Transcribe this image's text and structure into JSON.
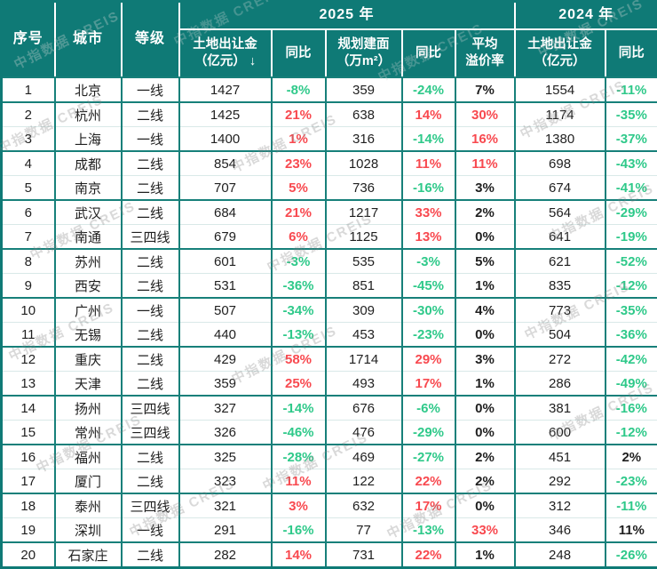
{
  "watermark": {
    "text": "中指数据 CREIS"
  },
  "colors": {
    "header_bg": "#0f7a76",
    "grid_teal": "#17807a",
    "grid_light": "#d9e9e8",
    "positive_red": "#f8494f",
    "negative_green": "#2fc98a",
    "neutral_dark": "#1f1f1f"
  },
  "chart_data": {
    "type": "table",
    "column_groups": [
      {
        "label": "2025 年",
        "span": 5
      },
      {
        "label": "2024 年",
        "span": 2
      }
    ],
    "columns": {
      "no": "序号",
      "city": "城市",
      "tier": "等级",
      "land_2025": "土地出让金\n（亿元） ↓",
      "yoy_land_2025": "同比",
      "area_2025": "规划建面\n（万m²）",
      "yoy_area_2025": "同比",
      "avg_premium": "平均\n溢价率",
      "land_2024": "土地出让金\n（亿元）",
      "yoy_land_2024": "同比"
    },
    "row_fields": [
      "no",
      "city",
      "tier",
      "land_2025",
      "yoy_land_2025",
      "area_2025",
      "yoy_area_2025",
      "avg_premium",
      "land_2024",
      "yoy_land_2024"
    ],
    "rows": [
      {
        "no": "1",
        "city": "北京",
        "tier": "一线",
        "land_2025": "1427",
        "yoy_land_2025": {
          "t": "-8%",
          "c": "green"
        },
        "area_2025": "359",
        "yoy_area_2025": {
          "t": "-24%",
          "c": "green"
        },
        "avg_premium": {
          "t": "7%",
          "c": "dark"
        },
        "land_2024": "1554",
        "yoy_land_2024": {
          "t": "-11%",
          "c": "green"
        }
      },
      {
        "no": "2",
        "city": "杭州",
        "tier": "二线",
        "land_2025": "1425",
        "yoy_land_2025": {
          "t": "21%",
          "c": "red"
        },
        "area_2025": "638",
        "yoy_area_2025": {
          "t": "14%",
          "c": "red"
        },
        "avg_premium": {
          "t": "30%",
          "c": "red"
        },
        "land_2024": "1174",
        "yoy_land_2024": {
          "t": "-35%",
          "c": "green"
        }
      },
      {
        "no": "3",
        "city": "上海",
        "tier": "一线",
        "land_2025": "1400",
        "yoy_land_2025": {
          "t": "1%",
          "c": "red"
        },
        "area_2025": "316",
        "yoy_area_2025": {
          "t": "-14%",
          "c": "green"
        },
        "avg_premium": {
          "t": "16%",
          "c": "red"
        },
        "land_2024": "1380",
        "yoy_land_2024": {
          "t": "-37%",
          "c": "green"
        }
      },
      {
        "no": "4",
        "city": "成都",
        "tier": "二线",
        "land_2025": "854",
        "yoy_land_2025": {
          "t": "23%",
          "c": "red"
        },
        "area_2025": "1028",
        "yoy_area_2025": {
          "t": "11%",
          "c": "red"
        },
        "avg_premium": {
          "t": "11%",
          "c": "red"
        },
        "land_2024": "698",
        "yoy_land_2024": {
          "t": "-43%",
          "c": "green"
        }
      },
      {
        "no": "5",
        "city": "南京",
        "tier": "二线",
        "land_2025": "707",
        "yoy_land_2025": {
          "t": "5%",
          "c": "red"
        },
        "area_2025": "736",
        "yoy_area_2025": {
          "t": "-16%",
          "c": "green"
        },
        "avg_premium": {
          "t": "3%",
          "c": "dark"
        },
        "land_2024": "674",
        "yoy_land_2024": {
          "t": "-41%",
          "c": "green"
        }
      },
      {
        "no": "6",
        "city": "武汉",
        "tier": "二线",
        "land_2025": "684",
        "yoy_land_2025": {
          "t": "21%",
          "c": "red"
        },
        "area_2025": "1217",
        "yoy_area_2025": {
          "t": "33%",
          "c": "red"
        },
        "avg_premium": {
          "t": "2%",
          "c": "dark"
        },
        "land_2024": "564",
        "yoy_land_2024": {
          "t": "-29%",
          "c": "green"
        }
      },
      {
        "no": "7",
        "city": "南通",
        "tier": "三四线",
        "land_2025": "679",
        "yoy_land_2025": {
          "t": "6%",
          "c": "red"
        },
        "area_2025": "1125",
        "yoy_area_2025": {
          "t": "13%",
          "c": "red"
        },
        "avg_premium": {
          "t": "0%",
          "c": "dark"
        },
        "land_2024": "641",
        "yoy_land_2024": {
          "t": "-19%",
          "c": "green"
        }
      },
      {
        "no": "8",
        "city": "苏州",
        "tier": "二线",
        "land_2025": "601",
        "yoy_land_2025": {
          "t": "-3%",
          "c": "green"
        },
        "area_2025": "535",
        "yoy_area_2025": {
          "t": "-3%",
          "c": "green"
        },
        "avg_premium": {
          "t": "5%",
          "c": "dark"
        },
        "land_2024": "621",
        "yoy_land_2024": {
          "t": "-52%",
          "c": "green"
        }
      },
      {
        "no": "9",
        "city": "西安",
        "tier": "二线",
        "land_2025": "531",
        "yoy_land_2025": {
          "t": "-36%",
          "c": "green"
        },
        "area_2025": "851",
        "yoy_area_2025": {
          "t": "-45%",
          "c": "green"
        },
        "avg_premium": {
          "t": "1%",
          "c": "dark"
        },
        "land_2024": "835",
        "yoy_land_2024": {
          "t": "-12%",
          "c": "green"
        }
      },
      {
        "no": "10",
        "city": "广州",
        "tier": "一线",
        "land_2025": "507",
        "yoy_land_2025": {
          "t": "-34%",
          "c": "green"
        },
        "area_2025": "309",
        "yoy_area_2025": {
          "t": "-30%",
          "c": "green"
        },
        "avg_premium": {
          "t": "4%",
          "c": "dark"
        },
        "land_2024": "773",
        "yoy_land_2024": {
          "t": "-35%",
          "c": "green"
        }
      },
      {
        "no": "11",
        "city": "无锡",
        "tier": "二线",
        "land_2025": "440",
        "yoy_land_2025": {
          "t": "-13%",
          "c": "green"
        },
        "area_2025": "453",
        "yoy_area_2025": {
          "t": "-23%",
          "c": "green"
        },
        "avg_premium": {
          "t": "0%",
          "c": "dark"
        },
        "land_2024": "504",
        "yoy_land_2024": {
          "t": "-36%",
          "c": "green"
        }
      },
      {
        "no": "12",
        "city": "重庆",
        "tier": "二线",
        "land_2025": "429",
        "yoy_land_2025": {
          "t": "58%",
          "c": "red"
        },
        "area_2025": "1714",
        "yoy_area_2025": {
          "t": "29%",
          "c": "red"
        },
        "avg_premium": {
          "t": "3%",
          "c": "dark"
        },
        "land_2024": "272",
        "yoy_land_2024": {
          "t": "-42%",
          "c": "green"
        }
      },
      {
        "no": "13",
        "city": "天津",
        "tier": "二线",
        "land_2025": "359",
        "yoy_land_2025": {
          "t": "25%",
          "c": "red"
        },
        "area_2025": "493",
        "yoy_area_2025": {
          "t": "17%",
          "c": "red"
        },
        "avg_premium": {
          "t": "1%",
          "c": "dark"
        },
        "land_2024": "286",
        "yoy_land_2024": {
          "t": "-49%",
          "c": "green"
        }
      },
      {
        "no": "14",
        "city": "扬州",
        "tier": "三四线",
        "land_2025": "327",
        "yoy_land_2025": {
          "t": "-14%",
          "c": "green"
        },
        "area_2025": "676",
        "yoy_area_2025": {
          "t": "-6%",
          "c": "green"
        },
        "avg_premium": {
          "t": "0%",
          "c": "dark"
        },
        "land_2024": "381",
        "yoy_land_2024": {
          "t": "-16%",
          "c": "green"
        }
      },
      {
        "no": "15",
        "city": "常州",
        "tier": "三四线",
        "land_2025": "326",
        "yoy_land_2025": {
          "t": "-46%",
          "c": "green"
        },
        "area_2025": "476",
        "yoy_area_2025": {
          "t": "-29%",
          "c": "green"
        },
        "avg_premium": {
          "t": "0%",
          "c": "dark"
        },
        "land_2024": "600",
        "yoy_land_2024": {
          "t": "-12%",
          "c": "green"
        }
      },
      {
        "no": "16",
        "city": "福州",
        "tier": "二线",
        "land_2025": "325",
        "yoy_land_2025": {
          "t": "-28%",
          "c": "green"
        },
        "area_2025": "469",
        "yoy_area_2025": {
          "t": "-27%",
          "c": "green"
        },
        "avg_premium": {
          "t": "2%",
          "c": "dark"
        },
        "land_2024": "451",
        "yoy_land_2024": {
          "t": "2%",
          "c": "dark"
        }
      },
      {
        "no": "17",
        "city": "厦门",
        "tier": "二线",
        "land_2025": "323",
        "yoy_land_2025": {
          "t": "11%",
          "c": "red"
        },
        "area_2025": "122",
        "yoy_area_2025": {
          "t": "22%",
          "c": "red"
        },
        "avg_premium": {
          "t": "2%",
          "c": "dark"
        },
        "land_2024": "292",
        "yoy_land_2024": {
          "t": "-23%",
          "c": "green"
        }
      },
      {
        "no": "18",
        "city": "泰州",
        "tier": "三四线",
        "land_2025": "321",
        "yoy_land_2025": {
          "t": "3%",
          "c": "red"
        },
        "area_2025": "632",
        "yoy_area_2025": {
          "t": "17%",
          "c": "red"
        },
        "avg_premium": {
          "t": "0%",
          "c": "dark"
        },
        "land_2024": "312",
        "yoy_land_2024": {
          "t": "-11%",
          "c": "green"
        }
      },
      {
        "no": "19",
        "city": "深圳",
        "tier": "一线",
        "land_2025": "291",
        "yoy_land_2025": {
          "t": "-16%",
          "c": "green"
        },
        "area_2025": "77",
        "yoy_area_2025": {
          "t": "-13%",
          "c": "green"
        },
        "avg_premium": {
          "t": "33%",
          "c": "red"
        },
        "land_2024": "346",
        "yoy_land_2024": {
          "t": "11%",
          "c": "dark"
        }
      },
      {
        "no": "20",
        "city": "石家庄",
        "tier": "二线",
        "land_2025": "282",
        "yoy_land_2025": {
          "t": "14%",
          "c": "red"
        },
        "area_2025": "731",
        "yoy_area_2025": {
          "t": "22%",
          "c": "red"
        },
        "avg_premium": {
          "t": "1%",
          "c": "dark"
        },
        "land_2024": "248",
        "yoy_land_2024": {
          "t": "-26%",
          "c": "green"
        }
      }
    ]
  }
}
